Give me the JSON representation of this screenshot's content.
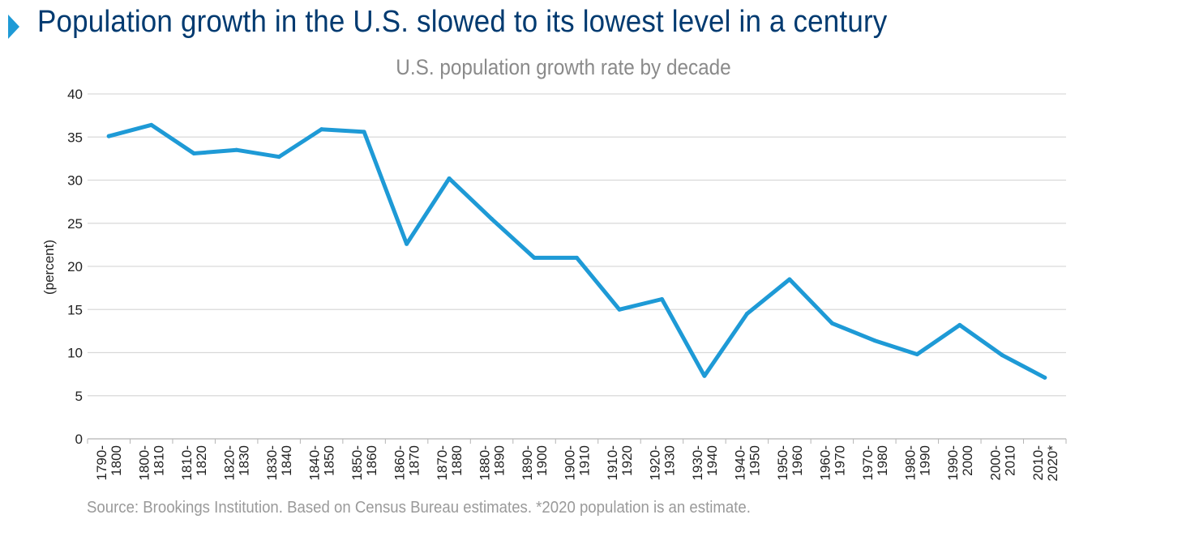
{
  "header": {
    "title": "Population growth in the U.S. slowed to its lowest level in a century"
  },
  "chart_data": {
    "type": "line",
    "title": "U.S. population growth rate by decade",
    "xlabel": "",
    "ylabel": "(percent)",
    "ylim": [
      0,
      40
    ],
    "yticks": [
      0,
      5,
      10,
      15,
      20,
      25,
      30,
      35,
      40
    ],
    "grid": true,
    "categories": [
      "1790-1800",
      "1800-1810",
      "1810-1820",
      "1820-1830",
      "1830-1840",
      "1840-1850",
      "1850-1860",
      "1860-1870",
      "1870-1880",
      "1880-1890",
      "1890-1900",
      "1900-1910",
      "1910-1920",
      "1920-1930",
      "1930-1940",
      "1940-1950",
      "1950-1960",
      "1960-1970",
      "1970-1980",
      "1980-1990",
      "1990-2000",
      "2000-2010",
      "2010-2020*"
    ],
    "series": [
      {
        "values": [
          35.1,
          36.4,
          33.1,
          33.5,
          32.7,
          35.9,
          35.6,
          22.6,
          30.2,
          25.5,
          21.0,
          21.0,
          15.0,
          16.2,
          7.3,
          14.5,
          18.5,
          13.4,
          11.4,
          9.8,
          13.2,
          9.7,
          7.1
        ],
        "color": "#1e9ad6"
      }
    ],
    "source": "Source: Brookings Institution. Based on Census Bureau estimates. *2020 population is an estimate."
  }
}
